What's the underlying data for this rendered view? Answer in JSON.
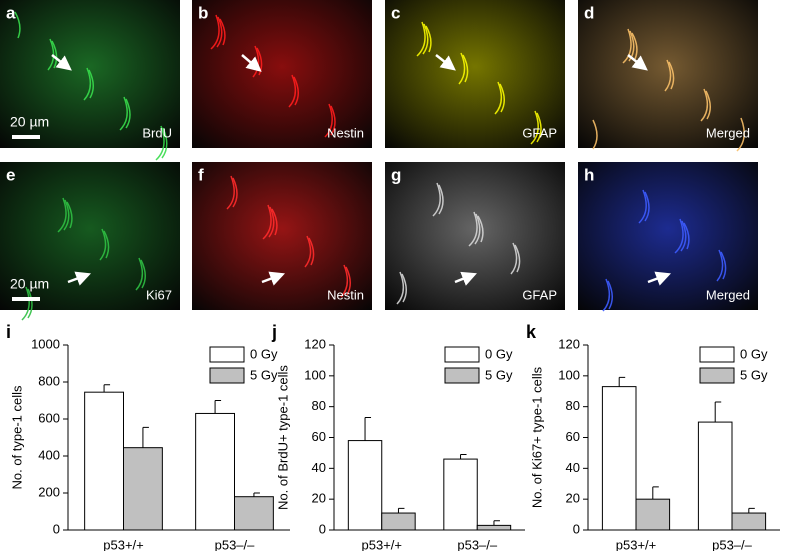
{
  "panels": [
    {
      "letter": "a",
      "label": "BrdU",
      "color": "#1f7a2a"
    },
    {
      "letter": "b",
      "label": "Nestin",
      "color": "#a01010"
    },
    {
      "letter": "c",
      "label": "GFAP",
      "color": "#8a8a00"
    },
    {
      "letter": "d",
      "label": "Merged",
      "color": "#8a6a3a"
    },
    {
      "letter": "e",
      "label": "Ki67",
      "color": "#1a6a25"
    },
    {
      "letter": "f",
      "label": "Nestin",
      "color": "#b01818"
    },
    {
      "letter": "g",
      "label": "GFAP",
      "color": "#777777"
    },
    {
      "letter": "h",
      "label": "Merged",
      "color": "#2233aa"
    }
  ],
  "scale_bars": [
    "20 µm",
    "20 µm"
  ],
  "chart_data": [
    {
      "type": "bar",
      "title": "i",
      "ylabel": "No. of type-1 cells",
      "categories": [
        "p53+/+",
        "p53–/–"
      ],
      "series": [
        {
          "name": "0 Gy",
          "color": "#ffffff",
          "values": [
            745,
            630
          ],
          "errors": [
            40,
            70
          ]
        },
        {
          "name": "5 Gy",
          "color": "#c0c0c0",
          "values": [
            445,
            180
          ],
          "errors": [
            110,
            20
          ]
        }
      ],
      "ylim": [
        0,
        1000
      ],
      "yticks": [
        0,
        200,
        400,
        600,
        800,
        1000
      ],
      "legend": "upper right"
    },
    {
      "type": "bar",
      "title": "j",
      "ylabel": "No. of BrdU+ type-1 cells",
      "categories": [
        "p53+/+",
        "p53–/–"
      ],
      "series": [
        {
          "name": "0 Gy",
          "color": "#ffffff",
          "values": [
            58,
            46
          ],
          "errors": [
            15,
            3
          ]
        },
        {
          "name": "5 Gy",
          "color": "#c0c0c0",
          "values": [
            11,
            3
          ],
          "errors": [
            3,
            3
          ]
        }
      ],
      "ylim": [
        0,
        120
      ],
      "yticks": [
        0,
        20,
        40,
        60,
        80,
        100,
        120
      ],
      "legend": "upper right"
    },
    {
      "type": "bar",
      "title": "k",
      "ylabel": "No. of Ki67+ type-1 cells",
      "categories": [
        "p53+/+",
        "p53–/–"
      ],
      "series": [
        {
          "name": "0 Gy",
          "color": "#ffffff",
          "values": [
            93,
            70
          ],
          "errors": [
            6,
            13
          ]
        },
        {
          "name": "5 Gy",
          "color": "#c0c0c0",
          "values": [
            20,
            11
          ],
          "errors": [
            8,
            3
          ]
        }
      ],
      "ylim": [
        0,
        120
      ],
      "yticks": [
        0,
        20,
        40,
        60,
        80,
        100,
        120
      ],
      "legend": "upper right"
    }
  ]
}
